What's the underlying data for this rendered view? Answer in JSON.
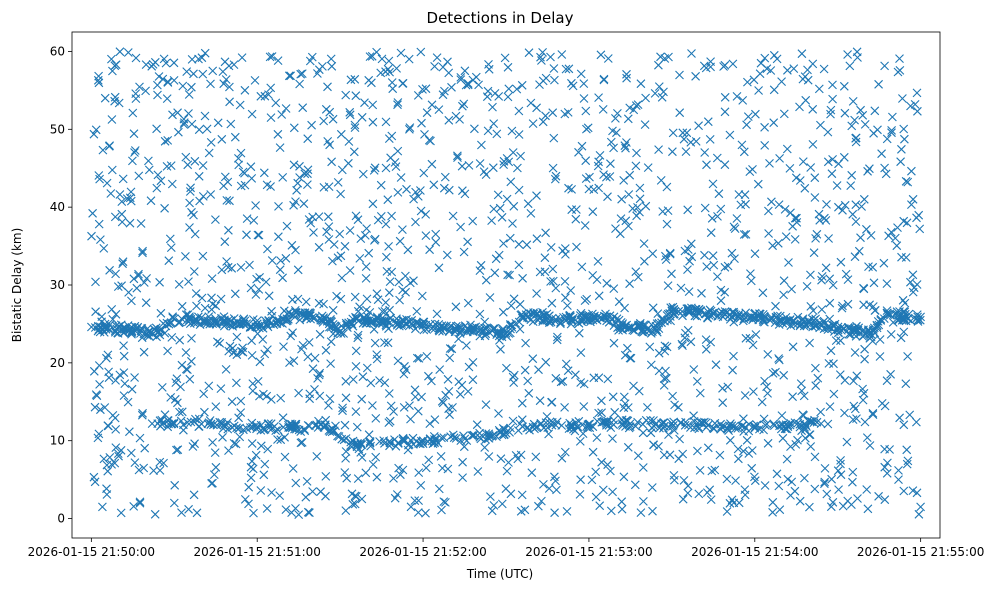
{
  "chart_data": {
    "type": "scatter",
    "title": "Detections in Delay",
    "xlabel": "Time (UTC)",
    "ylabel": "Bistatic Delay (km)",
    "marker": "x",
    "marker_color": "#1f77b4",
    "xlim": [
      "2026-01-15 21:49:53",
      "2026-01-15 21:55:07"
    ],
    "ylim": [
      -2.5,
      62.5
    ],
    "x_ticks": [
      "2026-01-15 21:50:00",
      "2026-01-15 21:51:00",
      "2026-01-15 21:52:00",
      "2026-01-15 21:53:00",
      "2026-01-15 21:54:00",
      "2026-01-15 21:55:00"
    ],
    "y_ticks": [
      0,
      10,
      20,
      30,
      40,
      50,
      60
    ],
    "grid": false,
    "legend": "none",
    "point_count_estimate": 2500,
    "x_span": [
      "2026-01-15 21:50:00",
      "2026-01-15 21:55:00"
    ],
    "delay_span_km": [
      0.5,
      60
    ],
    "series": [
      {
        "points": [
          [
            "2026-01-15 21:50:00",
            24.6
          ],
          [
            "2026-01-15 21:50:06",
            24.4
          ],
          [
            "2026-01-15 21:50:12",
            24.3
          ],
          [
            "2026-01-15 21:50:18",
            24.1
          ],
          [
            "2026-01-15 21:50:24",
            23.9
          ],
          [
            "2026-01-15 21:50:30",
            25.7
          ],
          [
            "2026-01-15 21:50:36",
            25.6
          ],
          [
            "2026-01-15 21:50:42",
            25.4
          ],
          [
            "2026-01-15 21:50:48",
            25.3
          ],
          [
            "2026-01-15 21:50:54",
            25.1
          ],
          [
            "2026-01-15 21:51:00",
            25.0
          ],
          [
            "2026-01-15 21:51:06",
            24.9
          ],
          [
            "2026-01-15 21:51:12",
            26.2
          ],
          [
            "2026-01-15 21:51:18",
            26.0
          ],
          [
            "2026-01-15 21:51:24",
            25.8
          ],
          [
            "2026-01-15 21:51:30",
            24.0
          ],
          [
            "2026-01-15 21:51:36",
            25.6
          ],
          [
            "2026-01-15 21:51:42",
            25.4
          ],
          [
            "2026-01-15 21:51:48",
            25.2
          ],
          [
            "2026-01-15 21:51:54",
            25.0
          ],
          [
            "2026-01-15 21:52:00",
            24.8
          ],
          [
            "2026-01-15 21:52:06",
            24.5
          ],
          [
            "2026-01-15 21:52:12",
            24.3
          ],
          [
            "2026-01-15 21:52:18",
            24.1
          ],
          [
            "2026-01-15 21:52:24",
            23.9
          ],
          [
            "2026-01-15 21:52:30",
            23.8
          ],
          [
            "2026-01-15 21:52:36",
            26.0
          ],
          [
            "2026-01-15 21:52:42",
            25.8
          ],
          [
            "2026-01-15 21:52:48",
            25.6
          ],
          [
            "2026-01-15 21:52:54",
            25.5
          ],
          [
            "2026-01-15 21:53:00",
            25.8
          ],
          [
            "2026-01-15 21:53:06",
            25.9
          ],
          [
            "2026-01-15 21:53:12",
            24.8
          ],
          [
            "2026-01-15 21:53:18",
            24.6
          ],
          [
            "2026-01-15 21:53:24",
            24.3
          ],
          [
            "2026-01-15 21:53:30",
            26.7
          ],
          [
            "2026-01-15 21:53:36",
            26.5
          ],
          [
            "2026-01-15 21:53:42",
            26.3
          ],
          [
            "2026-01-15 21:53:48",
            26.1
          ],
          [
            "2026-01-15 21:53:54",
            25.9
          ],
          [
            "2026-01-15 21:54:00",
            25.8
          ],
          [
            "2026-01-15 21:54:06",
            25.6
          ],
          [
            "2026-01-15 21:54:12",
            25.4
          ],
          [
            "2026-01-15 21:54:18",
            25.2
          ],
          [
            "2026-01-15 21:54:24",
            25.0
          ],
          [
            "2026-01-15 21:54:30",
            24.3
          ],
          [
            "2026-01-15 21:54:36",
            24.0
          ],
          [
            "2026-01-15 21:54:42",
            23.7
          ],
          [
            "2026-01-15 21:54:48",
            26.2
          ],
          [
            "2026-01-15 21:54:54",
            26.0
          ],
          [
            "2026-01-15 21:55:00",
            25.9
          ],
          [
            "2026-01-15 21:50:24",
            12.2
          ],
          [
            "2026-01-15 21:50:36",
            12.4
          ],
          [
            "2026-01-15 21:50:48",
            12.0
          ],
          [
            "2026-01-15 21:51:00",
            11.8
          ],
          [
            "2026-01-15 21:51:12",
            11.7
          ],
          [
            "2026-01-15 21:51:24",
            11.8
          ],
          [
            "2026-01-15 21:51:36",
            9.4
          ],
          [
            "2026-01-15 21:51:48",
            9.7
          ],
          [
            "2026-01-15 21:52:00",
            10.0
          ],
          [
            "2026-01-15 21:52:12",
            10.3
          ],
          [
            "2026-01-15 21:52:24",
            10.6
          ],
          [
            "2026-01-15 21:52:36",
            11.8
          ],
          [
            "2026-01-15 21:52:48",
            12.0
          ],
          [
            "2026-01-15 21:53:00",
            12.1
          ],
          [
            "2026-01-15 21:53:12",
            12.2
          ],
          [
            "2026-01-15 21:53:24",
            12.1
          ],
          [
            "2026-01-15 21:53:36",
            12.0
          ],
          [
            "2026-01-15 21:53:48",
            11.8
          ],
          [
            "2026-01-15 21:54:00",
            11.6
          ],
          [
            "2026-01-15 21:54:12",
            12.0
          ],
          [
            "2026-01-15 21:54:24",
            12.2
          ],
          [
            "2026-01-15 21:50:03",
            43.6
          ],
          [
            "2026-01-15 21:50:05",
            54.0
          ],
          [
            "2026-01-15 21:50:09",
            58.3
          ],
          [
            "2026-01-15 21:50:15",
            52.1
          ],
          [
            "2026-01-15 21:50:27",
            58.5
          ],
          [
            "2026-01-15 21:50:40",
            59.2
          ],
          [
            "2026-01-15 21:51:05",
            51.5
          ],
          [
            "2026-01-15 21:51:27",
            58.1
          ],
          [
            "2026-01-15 21:51:52",
            59.8
          ],
          [
            "2026-01-15 21:52:31",
            55.2
          ],
          [
            "2026-01-15 21:53:07",
            59.1
          ],
          [
            "2026-01-15 21:53:44",
            58.7
          ],
          [
            "2026-01-15 21:54:21",
            58.4
          ],
          [
            "2026-01-15 21:54:58",
            53.2
          ],
          [
            "2026-01-15 21:50:04",
            1.5
          ],
          [
            "2026-01-15 21:50:30",
            2.0
          ],
          [
            "2026-01-15 21:51:15",
            0.5
          ],
          [
            "2026-01-15 21:51:57",
            2.3
          ],
          [
            "2026-01-15 21:52:25",
            1.0
          ],
          [
            "2026-01-15 21:53:12",
            1.2
          ],
          [
            "2026-01-15 21:53:50",
            0.9
          ],
          [
            "2026-01-15 21:54:32",
            1.6
          ],
          [
            "2026-01-15 21:55:00",
            1.5
          ]
        ],
        "scatter_background": "dense uniform scatter over the full x and y range"
      }
    ]
  }
}
